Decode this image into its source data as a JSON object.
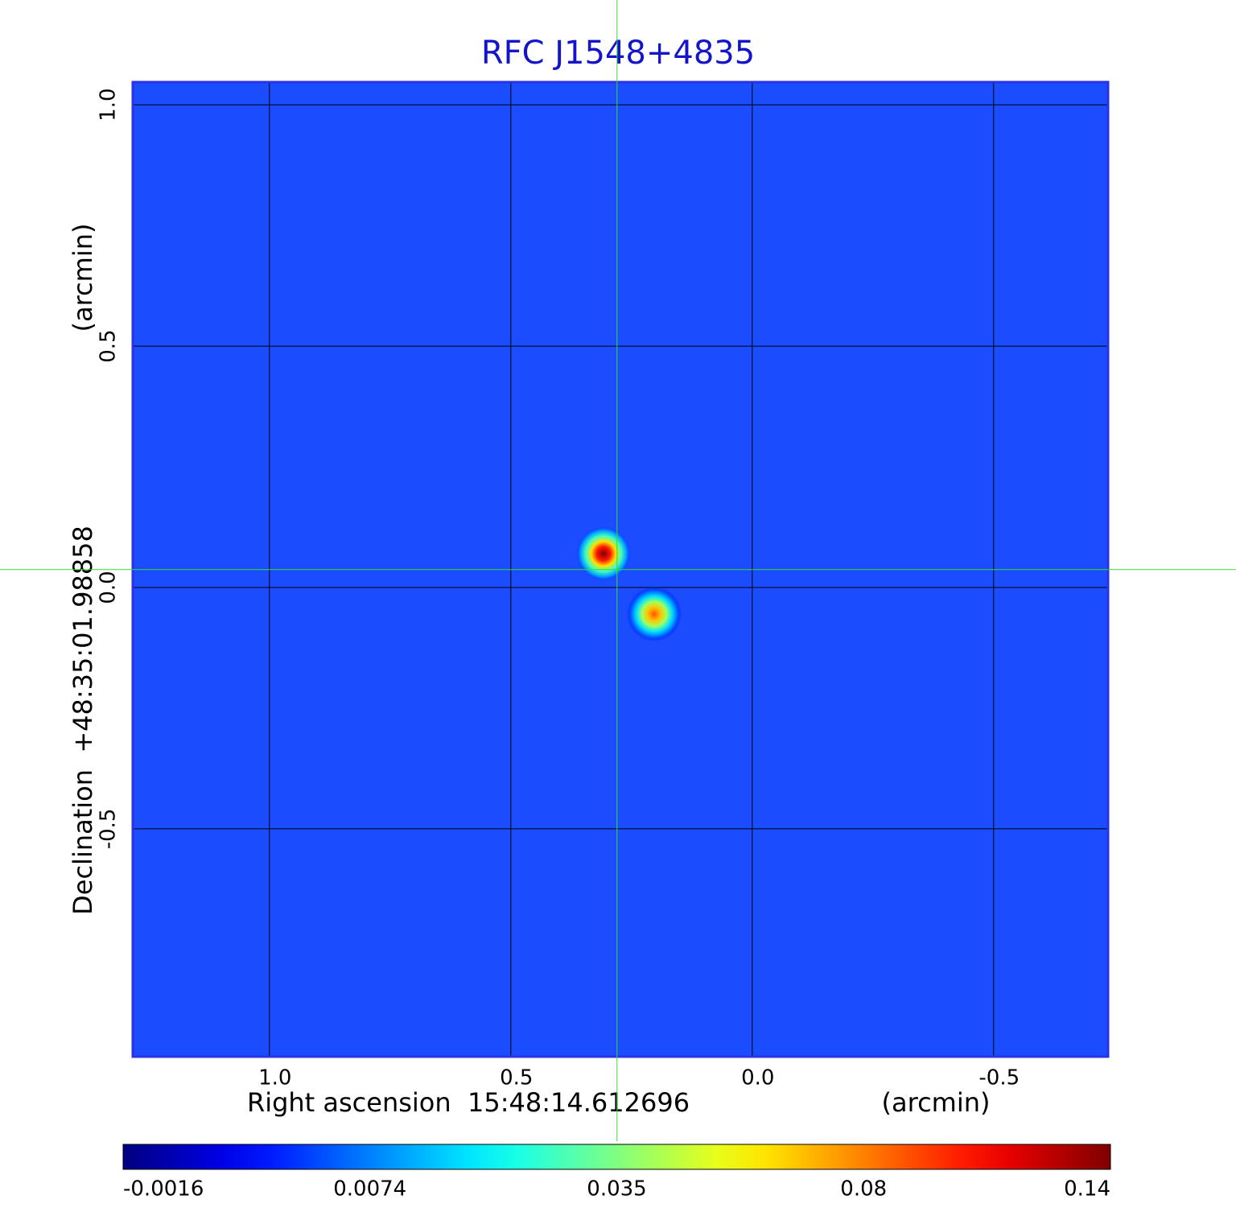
{
  "chart_data": {
    "type": "image",
    "title": "RFC J1548+4835",
    "xlabel": "Right ascension  15:48:14.612696",
    "xunit": "(arcmin)",
    "ylabel": "Declination  +48:35:01.98858",
    "yunit": "(arcmin)",
    "xlim": [
      1.283,
      -0.737
    ],
    "ylim": [
      -0.972,
      1.047
    ],
    "xticks": [
      {
        "value": 1,
        "label": "1.0"
      },
      0.5,
      {
        "value": 0,
        "label": "0.0"
      },
      -0.5
    ],
    "yticks": [
      {
        "value": 1,
        "label": "1.0"
      },
      0.5,
      {
        "value": 0,
        "label": "0.0"
      },
      -0.5
    ],
    "grid": true,
    "colormap": "jet",
    "colorbar_ticks": [
      -0.0016,
      0.0074,
      0.035,
      0.08,
      0.14
    ],
    "crosshair": {
      "x": 0.28,
      "y": 0.037,
      "color": "#33dd33"
    },
    "sources": {
      "x": [
        0.308,
        0.203
      ],
      "y": [
        0.07,
        -0.055
      ],
      "peak": [
        0.14,
        0.09
      ]
    }
  }
}
